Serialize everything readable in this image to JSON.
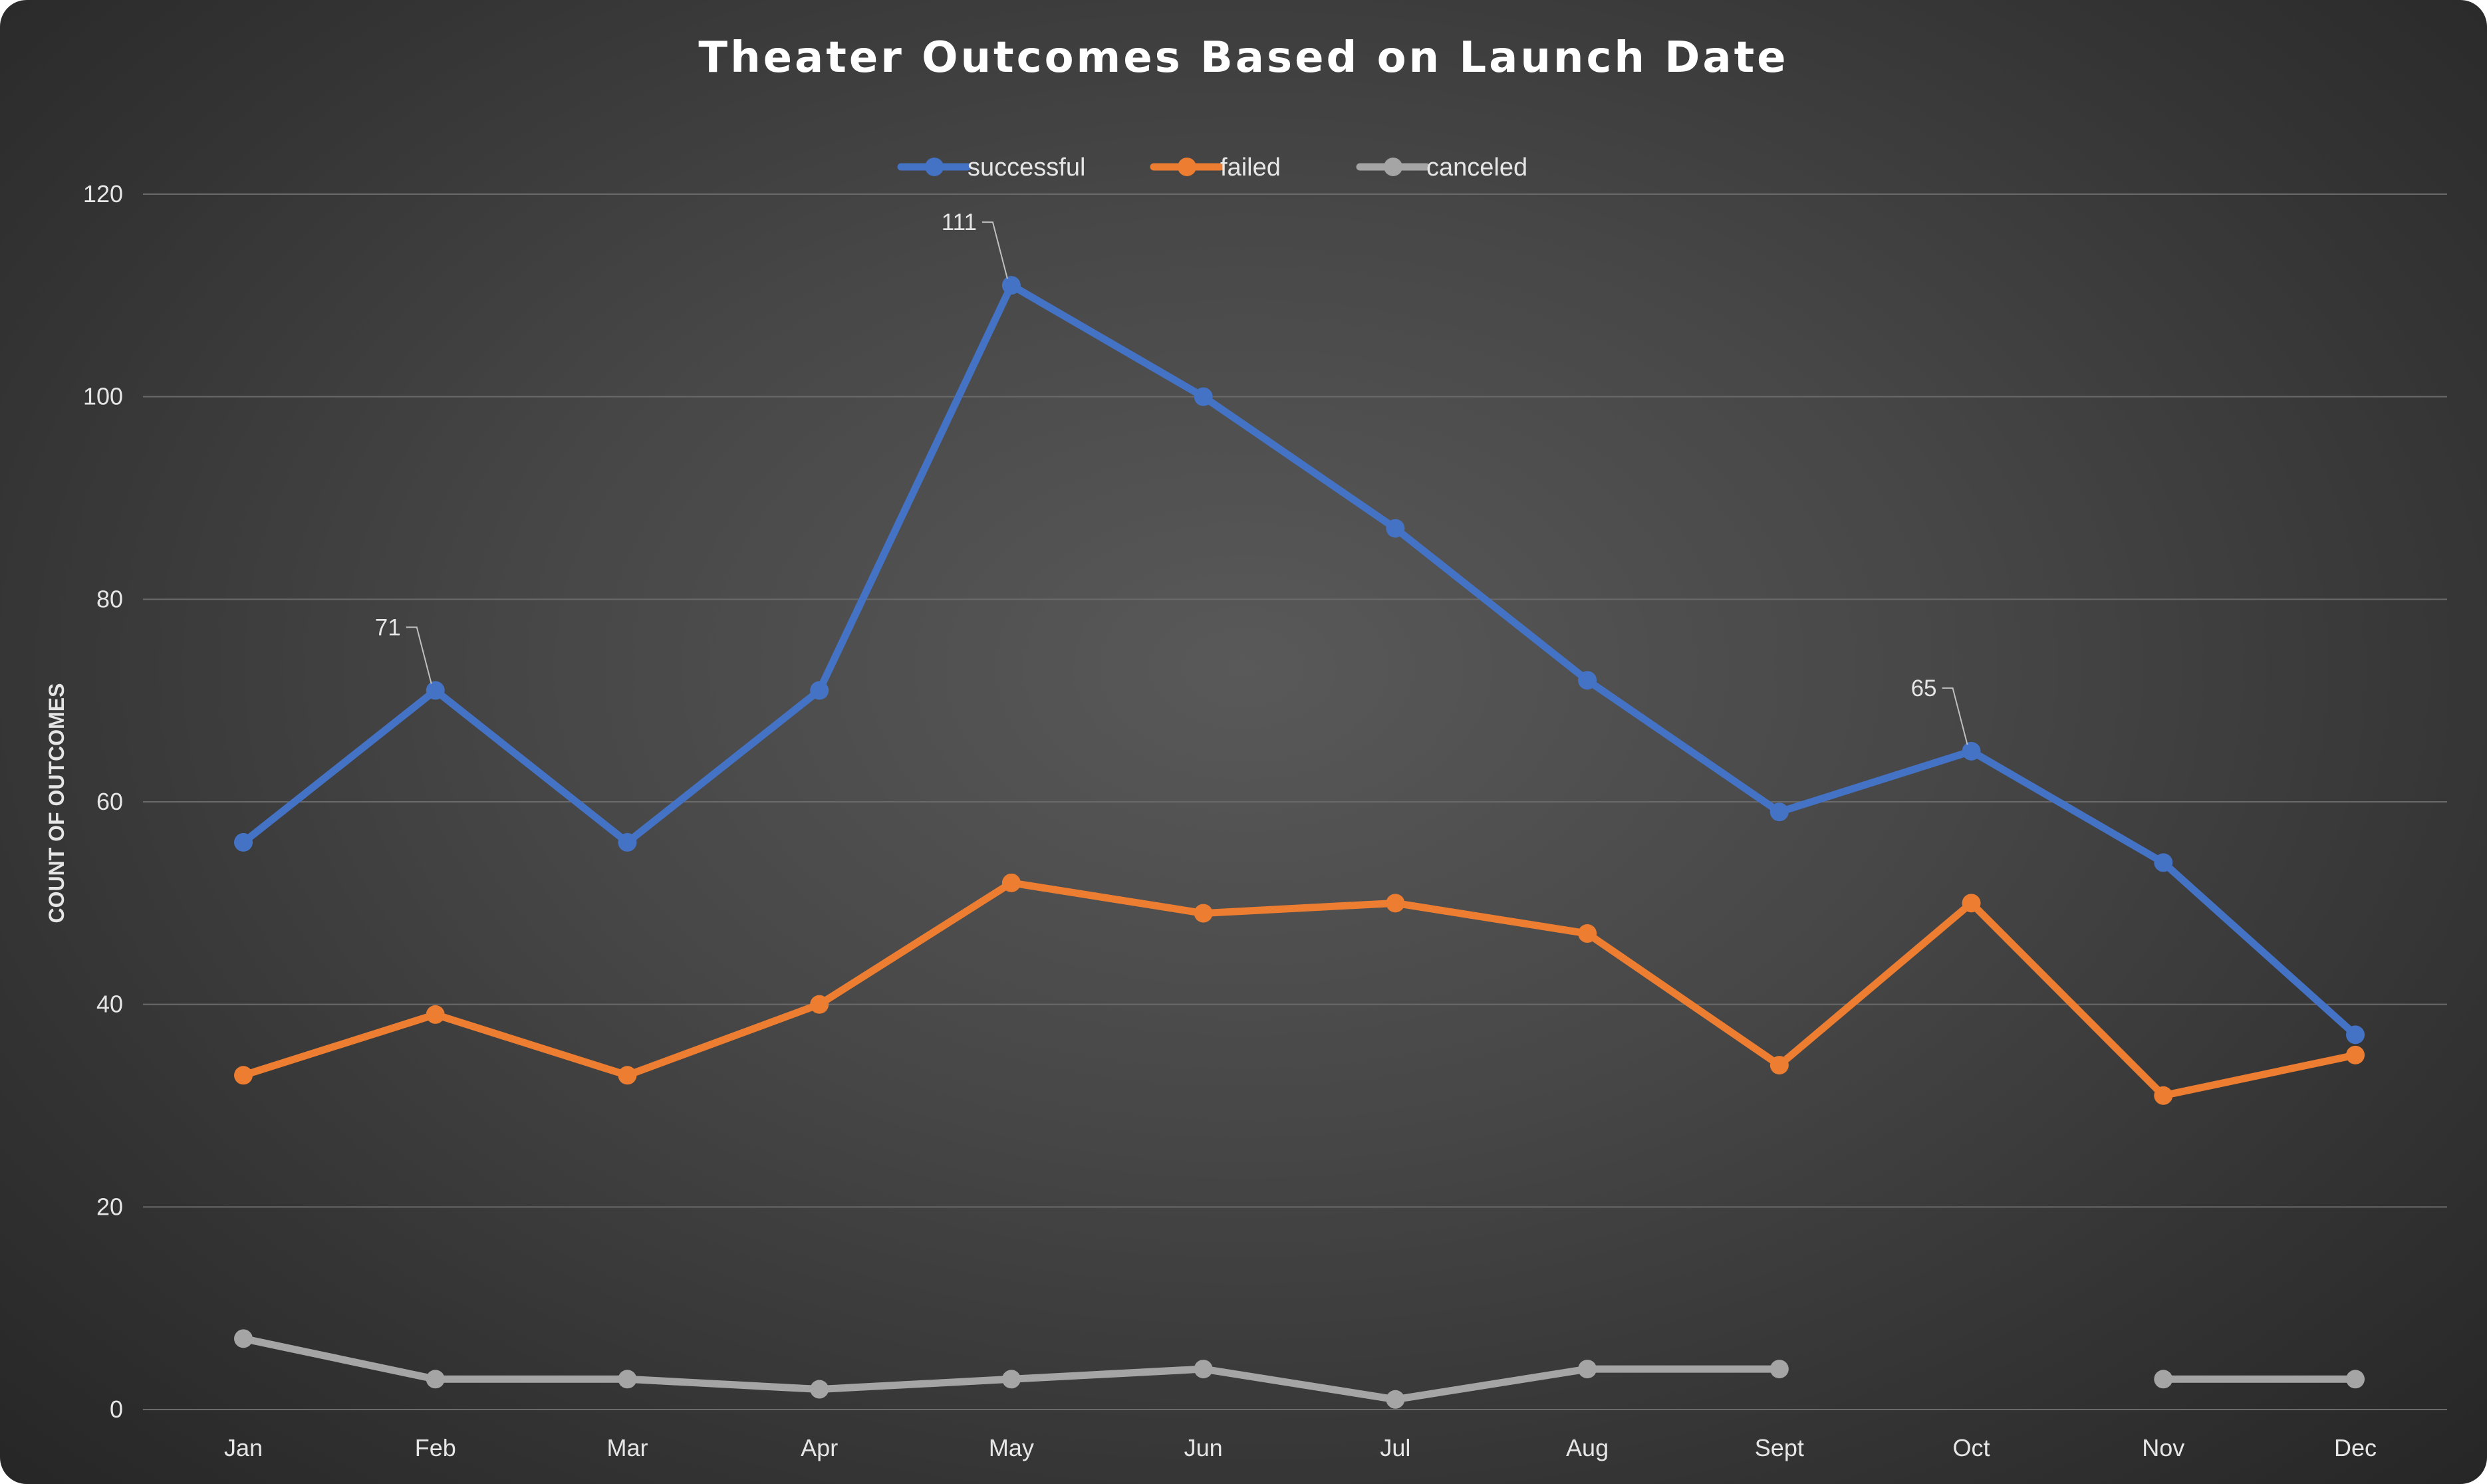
{
  "chart_data": {
    "type": "line",
    "title": "Theater Outcomes Based on Launch Date",
    "ylabel": "COUNT OF OUTCOMES",
    "xlabel": "",
    "ylim": [
      0,
      120
    ],
    "yticks": [
      0,
      20,
      40,
      60,
      80,
      100,
      120
    ],
    "grid": true,
    "legend_position": "top-center",
    "categories": [
      "Jan",
      "Feb",
      "Mar",
      "Apr",
      "May",
      "Jun",
      "Jul",
      "Aug",
      "Sept",
      "Oct",
      "Nov",
      "Dec"
    ],
    "series": [
      {
        "name": "successful",
        "color": "#4472c4",
        "values": [
          56,
          71,
          56,
          71,
          111,
          100,
          87,
          72,
          59,
          65,
          54,
          37
        ]
      },
      {
        "name": "failed",
        "color": "#ed7d31",
        "values": [
          33,
          39,
          33,
          40,
          52,
          49,
          50,
          47,
          34,
          50,
          31,
          35
        ]
      },
      {
        "name": "canceled",
        "color": "#a5a5a5",
        "values": [
          7,
          3,
          3,
          2,
          3,
          4,
          1,
          4,
          4,
          null,
          3,
          3
        ]
      }
    ],
    "annotations": [
      {
        "series": "successful",
        "category": "Feb",
        "text": "71"
      },
      {
        "series": "successful",
        "category": "May",
        "text": "111"
      },
      {
        "series": "successful",
        "category": "Oct",
        "text": "65"
      }
    ]
  }
}
